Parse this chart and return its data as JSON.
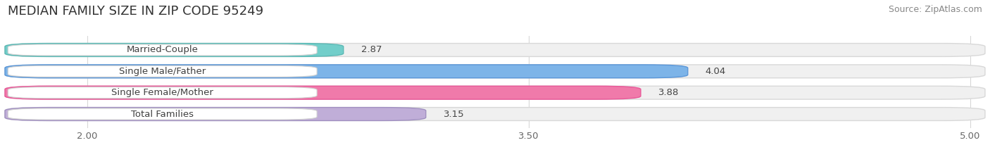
{
  "title": "MEDIAN FAMILY SIZE IN ZIP CODE 95249",
  "source": "Source: ZipAtlas.com",
  "categories": [
    "Married-Couple",
    "Single Male/Father",
    "Single Female/Mother",
    "Total Families"
  ],
  "values": [
    2.87,
    4.04,
    3.88,
    3.15
  ],
  "bar_colors": [
    "#72ceca",
    "#7db4e8",
    "#f07aaa",
    "#c0aed8"
  ],
  "bar_border_colors": [
    "#5bb8b4",
    "#5a96d8",
    "#e85898",
    "#a090c0"
  ],
  "xlim_min": 1.72,
  "xlim_max": 5.05,
  "xticks": [
    2.0,
    3.5,
    5.0
  ],
  "xticklabels": [
    "2.00",
    "3.50",
    "5.00"
  ],
  "background_color": "#ffffff",
  "bar_bg_color": "#f0f0f0",
  "title_fontsize": 13,
  "source_fontsize": 9,
  "label_fontsize": 9.5,
  "value_fontsize": 9.5,
  "bar_height": 0.62,
  "figsize": [
    14.06,
    2.33
  ],
  "dpi": 100
}
